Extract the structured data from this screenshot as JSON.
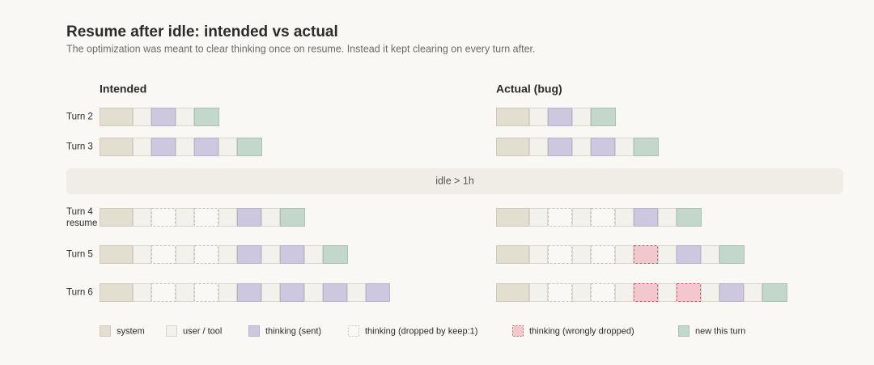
{
  "header": {
    "title": "Resume after idle: intended vs actual",
    "subtitle": "The optimization was meant to clear thinking once on resume. Instead it kept clearing on every turn after."
  },
  "columns": [
    "Intended",
    "Actual (bug)"
  ],
  "rows": [
    {
      "label": "Turn 2"
    },
    {
      "label": "Turn 3"
    },
    {
      "label": "Turn 4",
      "sublabel": "resume"
    },
    {
      "label": "Turn 5"
    },
    {
      "label": "Turn 6"
    }
  ],
  "idle": "idle > 1h",
  "legend": [
    "system",
    "user / tool",
    "thinking (sent)",
    "thinking (dropped by keep:1)",
    "thinking (wrongly dropped)",
    "new this turn"
  ]
}
